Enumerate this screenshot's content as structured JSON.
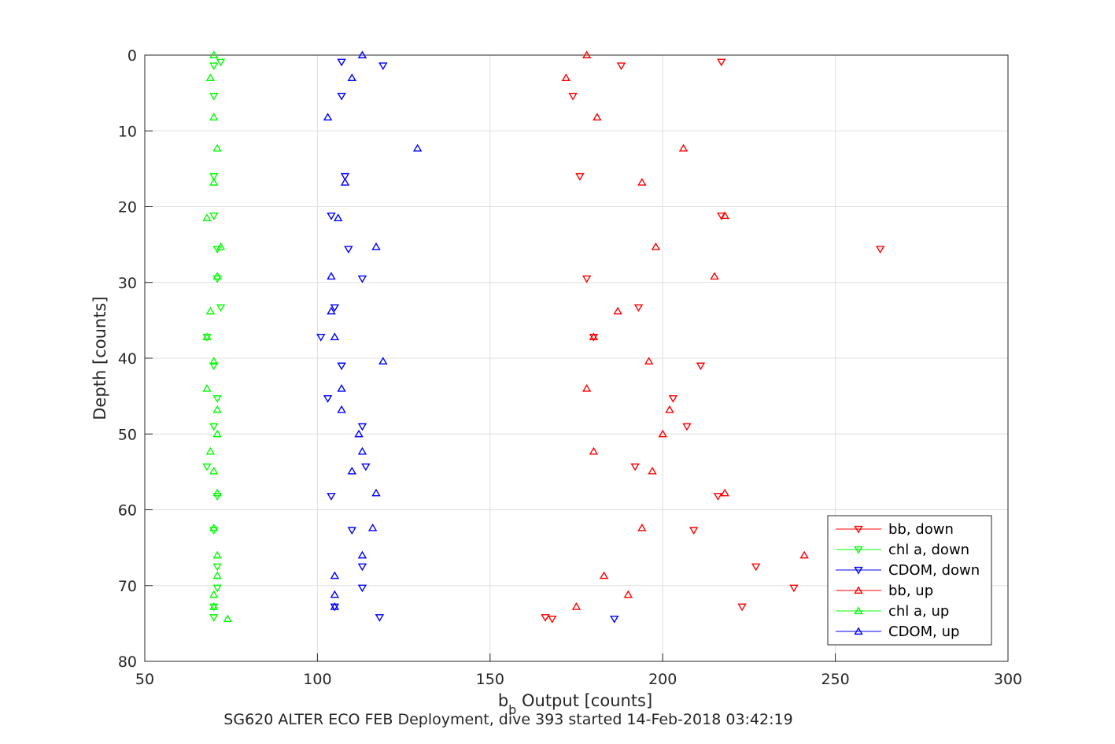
{
  "chart_data": {
    "type": "scatter",
    "xlabel": {
      "main": "b",
      "subscript": "b",
      "rest": " Output [counts]"
    },
    "ylabel": "Depth [counts]",
    "caption": "SG620 ALTER ECO FEB Deployment, dive 393 started 14-Feb-2018 03:42:19",
    "xlim": [
      50,
      300
    ],
    "ylim": [
      0,
      80
    ],
    "y_reversed": true,
    "grid": true,
    "legend_position": "bottom-right",
    "xticks": [
      50,
      100,
      150,
      200,
      250,
      300
    ],
    "yticks": [
      0,
      10,
      20,
      30,
      40,
      50,
      60,
      70,
      80
    ],
    "series": [
      {
        "name": "bb, down",
        "color": "#ff0000",
        "marker": "triangle-down",
        "points": [
          [
            217,
            0.9
          ],
          [
            188,
            1.4
          ],
          [
            174,
            5.4
          ],
          [
            176,
            16
          ],
          [
            217,
            21.2
          ],
          [
            263,
            25.6
          ],
          [
            178,
            29.5
          ],
          [
            193,
            33.3
          ],
          [
            180,
            37.2
          ],
          [
            211,
            41
          ],
          [
            203,
            45.3
          ],
          [
            207,
            49
          ],
          [
            192,
            54.3
          ],
          [
            216,
            58.2
          ],
          [
            209,
            62.7
          ],
          [
            227,
            67.5
          ],
          [
            238,
            70.3
          ],
          [
            223,
            72.8
          ],
          [
            166,
            74.2
          ],
          [
            168,
            74.4
          ]
        ]
      },
      {
        "name": "chl a, down",
        "color": "#00ff00",
        "marker": "triangle-down",
        "points": [
          [
            72,
            0.9
          ],
          [
            70,
            1.4
          ],
          [
            70,
            5.4
          ],
          [
            70,
            16
          ],
          [
            70,
            21.2
          ],
          [
            71,
            25.6
          ],
          [
            71,
            29.5
          ],
          [
            72,
            33.3
          ],
          [
            68,
            37.2
          ],
          [
            70,
            41
          ],
          [
            71,
            45.3
          ],
          [
            70,
            49
          ],
          [
            68,
            54.3
          ],
          [
            71,
            58.2
          ],
          [
            70,
            62.7
          ],
          [
            71,
            67.5
          ],
          [
            71,
            70.3
          ],
          [
            70,
            72.8
          ],
          [
            70,
            74.2
          ]
        ]
      },
      {
        "name": "CDOM, down",
        "color": "#0000ff",
        "marker": "triangle-down",
        "points": [
          [
            107,
            0.9
          ],
          [
            119,
            1.4
          ],
          [
            107,
            5.4
          ],
          [
            108,
            16
          ],
          [
            104,
            21.2
          ],
          [
            109,
            25.6
          ],
          [
            113,
            29.5
          ],
          [
            105,
            33.3
          ],
          [
            101,
            37.2
          ],
          [
            107,
            41
          ],
          [
            103,
            45.3
          ],
          [
            113,
            49
          ],
          [
            114,
            54.3
          ],
          [
            104,
            58.2
          ],
          [
            110,
            62.7
          ],
          [
            113,
            67.5
          ],
          [
            113,
            70.3
          ],
          [
            105,
            72.8
          ],
          [
            118,
            74.2
          ],
          [
            186,
            74.4
          ]
        ]
      },
      {
        "name": "bb, up",
        "color": "#ff0000",
        "marker": "triangle-up",
        "points": [
          [
            178,
            0
          ],
          [
            172,
            3
          ],
          [
            181,
            8.2
          ],
          [
            206,
            12.3
          ],
          [
            194,
            16.8
          ],
          [
            218,
            21.2
          ],
          [
            198,
            25.3
          ],
          [
            215,
            29.2
          ],
          [
            187,
            33.8
          ],
          [
            180,
            37.2
          ],
          [
            196,
            40.4
          ],
          [
            178,
            44
          ],
          [
            202,
            46.8
          ],
          [
            200,
            50
          ],
          [
            180,
            52.3
          ],
          [
            197,
            54.9
          ],
          [
            218,
            57.8
          ],
          [
            194,
            62.4
          ],
          [
            241,
            66
          ],
          [
            183,
            68.7
          ],
          [
            190,
            71.2
          ],
          [
            175,
            72.8
          ]
        ]
      },
      {
        "name": "chl a, up",
        "color": "#00ff00",
        "marker": "triangle-up",
        "points": [
          [
            70,
            0
          ],
          [
            69,
            3
          ],
          [
            70,
            8.2
          ],
          [
            71,
            12.3
          ],
          [
            70,
            16.8
          ],
          [
            68,
            21.5
          ],
          [
            72,
            25.3
          ],
          [
            71,
            29.2
          ],
          [
            69,
            33.8
          ],
          [
            68,
            37.2
          ],
          [
            70,
            40.4
          ],
          [
            68,
            44
          ],
          [
            71,
            46.8
          ],
          [
            71,
            50
          ],
          [
            69,
            52.3
          ],
          [
            70,
            54.9
          ],
          [
            71,
            57.8
          ],
          [
            70,
            62.4
          ],
          [
            71,
            66
          ],
          [
            71,
            68.7
          ],
          [
            70,
            71.2
          ],
          [
            70,
            72.8
          ],
          [
            74,
            74.4
          ]
        ]
      },
      {
        "name": "CDOM, up",
        "color": "#0000ff",
        "marker": "triangle-up",
        "points": [
          [
            113,
            0
          ],
          [
            110,
            3
          ],
          [
            103,
            8.2
          ],
          [
            129,
            12.3
          ],
          [
            108,
            16.8
          ],
          [
            106,
            21.5
          ],
          [
            117,
            25.3
          ],
          [
            104,
            29.2
          ],
          [
            104,
            33.8
          ],
          [
            105,
            37.2
          ],
          [
            119,
            40.4
          ],
          [
            107,
            44
          ],
          [
            107,
            46.8
          ],
          [
            112,
            50
          ],
          [
            113,
            52.3
          ],
          [
            110,
            54.9
          ],
          [
            117,
            57.8
          ],
          [
            116,
            62.4
          ],
          [
            113,
            66
          ],
          [
            105,
            68.7
          ],
          [
            105,
            71.2
          ],
          [
            105,
            72.8
          ]
        ]
      }
    ]
  }
}
